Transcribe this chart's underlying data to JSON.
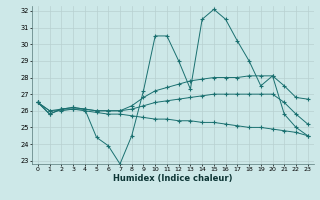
{
  "x": [
    0,
    1,
    2,
    3,
    4,
    5,
    6,
    7,
    8,
    9,
    10,
    11,
    12,
    13,
    14,
    15,
    16,
    17,
    18,
    19,
    20,
    21,
    22,
    23
  ],
  "series1": [
    26.5,
    25.8,
    26.1,
    26.1,
    26.1,
    24.4,
    23.9,
    22.8,
    24.5,
    27.2,
    30.5,
    30.5,
    29.0,
    27.3,
    31.5,
    32.1,
    31.5,
    30.2,
    29.0,
    27.5,
    28.1,
    25.8,
    25.0,
    24.5
  ],
  "series2": [
    26.5,
    25.8,
    26.1,
    26.2,
    26.1,
    26.0,
    26.0,
    26.0,
    26.3,
    26.8,
    27.2,
    27.4,
    27.6,
    27.8,
    27.9,
    28.0,
    28.0,
    28.0,
    28.1,
    28.1,
    28.1,
    27.5,
    26.8,
    26.7
  ],
  "series3": [
    26.5,
    26.0,
    26.1,
    26.2,
    26.1,
    26.0,
    26.0,
    26.0,
    26.1,
    26.3,
    26.5,
    26.6,
    26.7,
    26.8,
    26.9,
    27.0,
    27.0,
    27.0,
    27.0,
    27.0,
    27.0,
    26.5,
    25.8,
    25.2
  ],
  "series4": [
    26.5,
    26.0,
    26.0,
    26.1,
    26.0,
    25.9,
    25.8,
    25.8,
    25.7,
    25.6,
    25.5,
    25.5,
    25.4,
    25.4,
    25.3,
    25.3,
    25.2,
    25.1,
    25.0,
    25.0,
    24.9,
    24.8,
    24.7,
    24.5
  ],
  "bg_color": "#cde8e8",
  "grid_color": "#b8d0d0",
  "line_color": "#1a7070",
  "xlabel": "Humidex (Indice chaleur)",
  "ylim": [
    23,
    32
  ],
  "xlim": [
    0,
    23
  ],
  "yticks": [
    23,
    24,
    25,
    26,
    27,
    28,
    29,
    30,
    31,
    32
  ],
  "xticks": [
    0,
    1,
    2,
    3,
    4,
    5,
    6,
    7,
    8,
    9,
    10,
    11,
    12,
    13,
    14,
    15,
    16,
    17,
    18,
    19,
    20,
    21,
    22,
    23
  ]
}
